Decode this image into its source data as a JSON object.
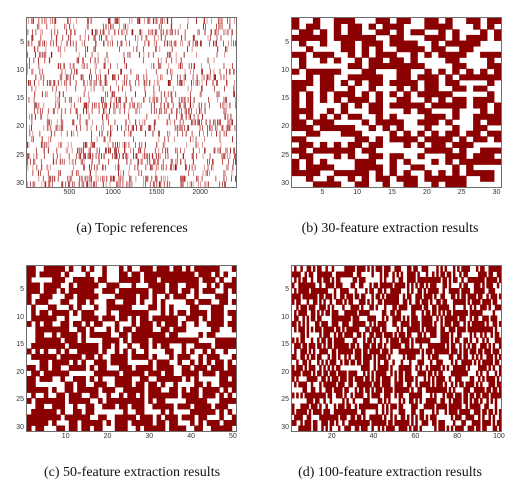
{
  "chart_data": [
    {
      "type": "heatmap",
      "caption": "(a)  Topic references",
      "xlim": [
        1,
        2400
      ],
      "ylim": [
        1,
        30
      ],
      "x_ticks": [
        500,
        1000,
        1500,
        2000
      ],
      "y_ticks": [
        5,
        10,
        15,
        20,
        25,
        30
      ],
      "rows": 30,
      "cols": 2400,
      "density": 0.02,
      "grid": false
    },
    {
      "type": "heatmap",
      "caption": "(b)  30-feature extraction results",
      "xlim": [
        1,
        30
      ],
      "ylim": [
        1,
        30
      ],
      "x_ticks": [
        5,
        10,
        15,
        20,
        25,
        30
      ],
      "y_ticks": [
        5,
        10,
        15,
        20,
        25,
        30
      ],
      "rows": 30,
      "cols": 30,
      "density": 0.55,
      "grid": false
    },
    {
      "type": "heatmap",
      "caption": "(c)  50-feature extraction results",
      "xlim": [
        1,
        50
      ],
      "ylim": [
        1,
        30
      ],
      "x_ticks": [
        10,
        20,
        30,
        40,
        50
      ],
      "y_ticks": [
        5,
        10,
        15,
        20,
        25,
        30
      ],
      "rows": 30,
      "cols": 50,
      "density": 0.62,
      "grid": false
    },
    {
      "type": "heatmap",
      "caption": "(d)  100-feature extraction results",
      "xlim": [
        1,
        100
      ],
      "ylim": [
        1,
        30
      ],
      "x_ticks": [
        20,
        40,
        60,
        80,
        100
      ],
      "y_ticks": [
        5,
        10,
        15,
        20,
        25,
        30
      ],
      "rows": 30,
      "cols": 100,
      "density": 0.6,
      "grid": false
    }
  ],
  "colors": {
    "filled": "#8b0000",
    "empty": "#ffffff",
    "frame": "#6e6e6e"
  }
}
